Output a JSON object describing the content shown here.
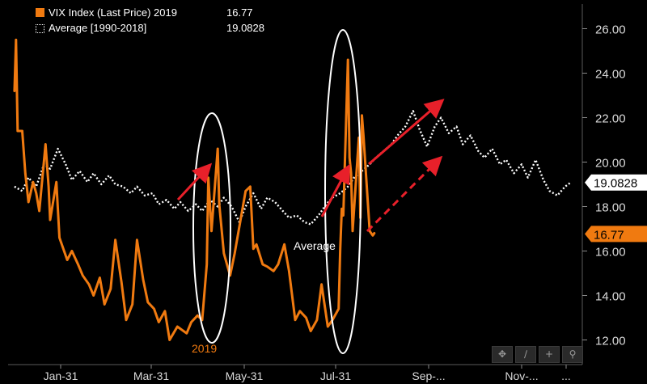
{
  "chart_data": {
    "type": "line",
    "x_axis": {
      "tick_labels": [
        "Jan-31",
        "Mar-31",
        "May-31",
        "Jul-31",
        "Sep-...",
        "Nov-...",
        "..."
      ]
    },
    "y_axis": {
      "range": [
        11,
        27
      ],
      "tick_labels": [
        "12.00",
        "14.00",
        "16.00",
        "18.00",
        "20.00",
        "22.00",
        "24.00",
        "26.00"
      ],
      "side": "right"
    },
    "grid": false,
    "legend": {
      "position": "top-left",
      "entries": [
        {
          "name": "VIX Index (Last Price) 2019",
          "value": "16.77",
          "style": "solid"
        },
        {
          "name": "Average [1990-2018]",
          "value": "19.0828",
          "style": "dotted"
        }
      ]
    },
    "series": [
      {
        "name": "VIX Index (Last Price) 2019",
        "color": "#f07a10",
        "style": "solid",
        "last_value": 16.77,
        "points": [
          [
            "2019-01-02",
            23.2
          ],
          [
            "2019-01-03",
            25.5
          ],
          [
            "2019-01-04",
            21.4
          ],
          [
            "2019-01-07",
            21.4
          ],
          [
            "2019-01-09",
            19.5
          ],
          [
            "2019-01-11",
            18.2
          ],
          [
            "2019-01-14",
            19.1
          ],
          [
            "2019-01-16",
            18.6
          ],
          [
            "2019-01-18",
            17.8
          ],
          [
            "2019-01-22",
            20.8
          ],
          [
            "2019-01-24",
            18.9
          ],
          [
            "2019-01-25",
            17.4
          ],
          [
            "2019-01-29",
            19.1
          ],
          [
            "2019-01-31",
            16.6
          ],
          [
            "2019-02-05",
            15.6
          ],
          [
            "2019-02-08",
            16.0
          ],
          [
            "2019-02-12",
            15.4
          ],
          [
            "2019-02-15",
            14.9
          ],
          [
            "2019-02-19",
            14.5
          ],
          [
            "2019-02-22",
            14.0
          ],
          [
            "2019-02-26",
            14.8
          ],
          [
            "2019-03-01",
            13.6
          ],
          [
            "2019-03-05",
            14.3
          ],
          [
            "2019-03-08",
            16.5
          ],
          [
            "2019-03-12",
            14.6
          ],
          [
            "2019-03-15",
            12.9
          ],
          [
            "2019-03-19",
            13.6
          ],
          [
            "2019-03-22",
            16.5
          ],
          [
            "2019-03-26",
            14.7
          ],
          [
            "2019-03-29",
            13.7
          ],
          [
            "2019-04-02",
            13.4
          ],
          [
            "2019-04-05",
            12.8
          ],
          [
            "2019-04-09",
            13.3
          ],
          [
            "2019-04-12",
            12.0
          ],
          [
            "2019-04-17",
            12.6
          ],
          [
            "2019-04-23",
            12.3
          ],
          [
            "2019-04-26",
            12.8
          ],
          [
            "2019-04-30",
            13.1
          ],
          [
            "2019-05-03",
            12.9
          ],
          [
            "2019-05-06",
            15.4
          ],
          [
            "2019-05-07",
            19.3
          ],
          [
            "2019-05-09",
            16.9
          ],
          [
            "2019-05-13",
            20.6
          ],
          [
            "2019-05-14",
            18.1
          ],
          [
            "2019-05-17",
            15.9
          ],
          [
            "2019-05-21",
            14.9
          ],
          [
            "2019-05-24",
            15.9
          ],
          [
            "2019-05-28",
            17.5
          ],
          [
            "2019-05-31",
            18.7
          ],
          [
            "2019-06-03",
            18.9
          ],
          [
            "2019-06-05",
            16.1
          ],
          [
            "2019-06-07",
            16.3
          ],
          [
            "2019-06-11",
            15.4
          ],
          [
            "2019-06-14",
            15.3
          ],
          [
            "2019-06-18",
            15.1
          ],
          [
            "2019-06-21",
            15.4
          ],
          [
            "2019-06-25",
            16.3
          ],
          [
            "2019-06-28",
            15.1
          ],
          [
            "2019-07-02",
            12.9
          ],
          [
            "2019-07-05",
            13.3
          ],
          [
            "2019-07-09",
            13.0
          ],
          [
            "2019-07-12",
            12.4
          ],
          [
            "2019-07-16",
            12.9
          ],
          [
            "2019-07-19",
            14.5
          ],
          [
            "2019-07-23",
            12.6
          ],
          [
            "2019-07-26",
            12.9
          ],
          [
            "2019-07-30",
            13.4
          ],
          [
            "2019-07-31",
            16.1
          ],
          [
            "2019-08-01",
            17.9
          ],
          [
            "2019-08-02",
            17.6
          ],
          [
            "2019-08-05",
            24.6
          ],
          [
            "2019-08-06",
            20.2
          ],
          [
            "2019-08-07",
            19.5
          ],
          [
            "2019-08-08",
            16.9
          ],
          [
            "2019-08-12",
            21.1
          ],
          [
            "2019-08-13",
            17.5
          ],
          [
            "2019-08-14",
            22.1
          ],
          [
            "2019-08-15",
            21.2
          ],
          [
            "2019-08-19",
            16.9
          ],
          [
            "2019-08-21",
            16.7
          ],
          [
            "2019-08-22",
            16.8
          ]
        ]
      },
      {
        "name": "Average [1990-2018]",
        "color": "#ffffff",
        "style": "dotted",
        "last_value": 19.0828,
        "points": [
          [
            "2019-01-02",
            18.9
          ],
          [
            "2019-01-07",
            18.7
          ],
          [
            "2019-01-11",
            19.3
          ],
          [
            "2019-01-16",
            18.9
          ],
          [
            "2019-01-21",
            19.9
          ],
          [
            "2019-01-25",
            19.7
          ],
          [
            "2019-01-30",
            20.6
          ],
          [
            "2019-02-04",
            19.9
          ],
          [
            "2019-02-08",
            19.2
          ],
          [
            "2019-02-13",
            19.6
          ],
          [
            "2019-02-18",
            19.1
          ],
          [
            "2019-02-22",
            19.5
          ],
          [
            "2019-02-27",
            19.0
          ],
          [
            "2019-03-04",
            19.4
          ],
          [
            "2019-03-08",
            19.0
          ],
          [
            "2019-03-13",
            18.9
          ],
          [
            "2019-03-18",
            18.6
          ],
          [
            "2019-03-22",
            18.9
          ],
          [
            "2019-03-27",
            18.5
          ],
          [
            "2019-04-01",
            18.6
          ],
          [
            "2019-04-05",
            18.1
          ],
          [
            "2019-04-10",
            18.3
          ],
          [
            "2019-04-15",
            17.9
          ],
          [
            "2019-04-19",
            18.2
          ],
          [
            "2019-04-24",
            17.8
          ],
          [
            "2019-04-29",
            18.1
          ],
          [
            "2019-05-03",
            17.8
          ],
          [
            "2019-05-08",
            18.3
          ],
          [
            "2019-05-13",
            18.0
          ],
          [
            "2019-05-17",
            18.4
          ],
          [
            "2019-05-22",
            18.0
          ],
          [
            "2019-05-27",
            17.3
          ],
          [
            "2019-05-31",
            18.0
          ],
          [
            "2019-06-05",
            18.6
          ],
          [
            "2019-06-10",
            17.9
          ],
          [
            "2019-06-14",
            18.4
          ],
          [
            "2019-06-19",
            18.2
          ],
          [
            "2019-06-24",
            17.8
          ],
          [
            "2019-06-28",
            17.5
          ],
          [
            "2019-07-03",
            17.6
          ],
          [
            "2019-07-08",
            17.3
          ],
          [
            "2019-07-12",
            17.2
          ],
          [
            "2019-07-17",
            17.6
          ],
          [
            "2019-07-22",
            18.1
          ],
          [
            "2019-07-26",
            18.4
          ],
          [
            "2019-07-31",
            18.6
          ],
          [
            "2019-08-05",
            18.9
          ],
          [
            "2019-08-09",
            19.3
          ],
          [
            "2019-08-14",
            19.6
          ],
          [
            "2019-08-19",
            19.9
          ],
          [
            "2019-08-23",
            20.2
          ],
          [
            "2019-08-28",
            20.5
          ],
          [
            "2019-09-02",
            20.8
          ],
          [
            "2019-09-06",
            21.2
          ],
          [
            "2019-09-11",
            21.6
          ],
          [
            "2019-09-16",
            22.3
          ],
          [
            "2019-09-20",
            21.5
          ],
          [
            "2019-09-25",
            20.7
          ],
          [
            "2019-09-30",
            21.6
          ],
          [
            "2019-10-04",
            22.0
          ],
          [
            "2019-10-09",
            21.3
          ],
          [
            "2019-10-14",
            21.6
          ],
          [
            "2019-10-18",
            20.8
          ],
          [
            "2019-10-23",
            21.2
          ],
          [
            "2019-10-28",
            20.5
          ],
          [
            "2019-11-01",
            20.2
          ],
          [
            "2019-11-06",
            20.6
          ],
          [
            "2019-11-11",
            19.9
          ],
          [
            "2019-11-15",
            20.1
          ],
          [
            "2019-11-20",
            19.5
          ],
          [
            "2019-11-25",
            19.9
          ],
          [
            "2019-11-29",
            19.3
          ],
          [
            "2019-12-04",
            20.1
          ],
          [
            "2019-12-09",
            19.2
          ],
          [
            "2019-12-13",
            18.7
          ],
          [
            "2019-12-18",
            18.5
          ],
          [
            "2019-12-23",
            18.9
          ],
          [
            "2019-12-27",
            19.1
          ]
        ]
      }
    ],
    "annotations": [
      {
        "text": "Average",
        "color": "#ffffff"
      },
      {
        "text": "2019",
        "color": "#f07a10"
      }
    ],
    "last_value_tags": [
      {
        "series": "Average [1990-2018]",
        "text": "19.0828",
        "bg": "#ffffff",
        "fg": "#000000"
      },
      {
        "series": "VIX Index (Last Price) 2019",
        "text": "16.77",
        "bg": "#f07a10",
        "fg": "#000000"
      }
    ]
  }
}
